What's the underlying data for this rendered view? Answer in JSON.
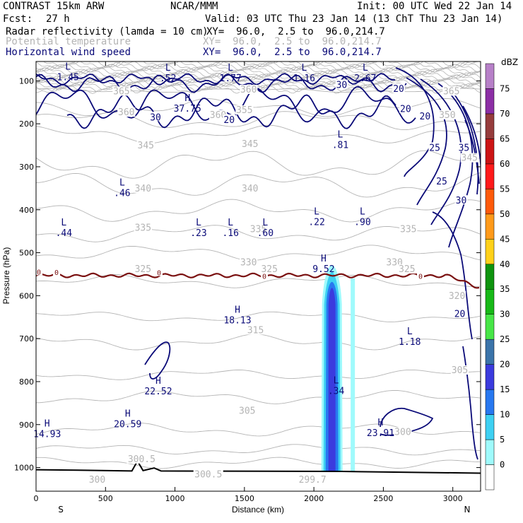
{
  "header": {
    "model": "CONTRAST 15km ARW",
    "org": "NCAR/MMM",
    "init": "Init: 00 UTC Wed 22 Jan 14",
    "fcst_label": "Fcst:",
    "fcst_value": "27 h",
    "valid": "Valid: 03 UTC Thu 23 Jan 14 (13 ChT Thu 23 Jan 14)",
    "field1_label": "Radar reflectivity (lamda = 10 cm)",
    "field1_xy": "XY=  96.0,  2.5 to  96.0,214.7",
    "field2_label": "Potential temperature",
    "field2_xy": "XY=  96.0,  2.5 to  96.0,214.7",
    "field3_label": "Horizontal wind speed",
    "field3_xy": "XY=  96.0,  2.5 to  96.0,214.7"
  },
  "colors": {
    "wind": "#0a0a78",
    "theta": "#b4b4b4",
    "freezing": "#7a1010",
    "terrain": "#000000",
    "text": "#000000"
  },
  "chart_data": {
    "type": "cross-section",
    "xlabel": "Distance (km)",
    "ylabel": "Pressure (hPa)",
    "xlim": [
      0,
      3200
    ],
    "ylim": [
      1055,
      55
    ],
    "x_ticks": [
      0,
      500,
      1000,
      1500,
      2000,
      2500,
      3000
    ],
    "y_ticks": [
      100,
      200,
      300,
      400,
      500,
      600,
      700,
      800,
      900,
      1000
    ],
    "x_end_labels": {
      "left": "S",
      "right": "N"
    },
    "colorbar": {
      "unit": "dBZ",
      "levels": [
        "0",
        "5",
        "10",
        "15",
        "20",
        "25",
        "30",
        "35",
        "40",
        "45",
        "50",
        "55",
        "60",
        "65",
        "70",
        "75"
      ],
      "colors": [
        "#ffffff",
        "#9ffafc",
        "#3ed0f2",
        "#2878f0",
        "#3b3bde",
        "#3b74aa",
        "#47e647",
        "#17b917",
        "#0e940e",
        "#ffd11a",
        "#ff9a1a",
        "#ff5a0a",
        "#ff1a1a",
        "#cc1414",
        "#963c3c",
        "#8c2ea5",
        "#b780c8"
      ]
    },
    "reflectivity_column": {
      "x_center_km": 2130,
      "top_hPa": 530,
      "bottom_hPa": 1010,
      "max_dbz": 20
    },
    "freezing_level": {
      "label": "0",
      "mean_hPa": 553
    },
    "theta_labels": [
      {
        "t": "365",
        "x": 615,
        "p": 128
      },
      {
        "t": "360",
        "x": 1530,
        "p": 124
      },
      {
        "t": "365",
        "x": 2990,
        "p": 128
      },
      {
        "t": "360",
        "x": 650,
        "p": 177
      },
      {
        "t": "360",
        "x": 1310,
        "p": 183
      },
      {
        "t": "355",
        "x": 1500,
        "p": 172
      },
      {
        "t": "350",
        "x": 2960,
        "p": 183
      },
      {
        "t": "345",
        "x": 790,
        "p": 254
      },
      {
        "t": "345",
        "x": 1540,
        "p": 251
      },
      {
        "t": "345",
        "x": 3120,
        "p": 283
      },
      {
        "t": "340",
        "x": 770,
        "p": 354
      },
      {
        "t": "340",
        "x": 1540,
        "p": 354
      },
      {
        "t": "335",
        "x": 770,
        "p": 446
      },
      {
        "t": "335",
        "x": 1600,
        "p": 449
      },
      {
        "t": "335",
        "x": 2680,
        "p": 449
      },
      {
        "t": "330",
        "x": 1530,
        "p": 526
      },
      {
        "t": "330",
        "x": 2580,
        "p": 526
      },
      {
        "t": "325",
        "x": 770,
        "p": 542
      },
      {
        "t": "325",
        "x": 1680,
        "p": 542
      },
      {
        "t": "325",
        "x": 2670,
        "p": 542
      },
      {
        "t": "320",
        "x": 3030,
        "p": 604
      },
      {
        "t": "315",
        "x": 1580,
        "p": 684
      },
      {
        "t": "305",
        "x": 3050,
        "p": 777
      },
      {
        "t": "305",
        "x": 1520,
        "p": 872
      },
      {
        "t": "300",
        "x": 2640,
        "p": 921
      },
      {
        "t": "300.5",
        "x": 760,
        "p": 984
      },
      {
        "t": "300.5",
        "x": 1240,
        "p": 1020
      },
      {
        "t": "299.7",
        "x": 1990,
        "p": 1032
      },
      {
        "t": "300",
        "x": 440,
        "p": 1032
      }
    ],
    "wind_labels": [
      {
        "t": "30",
        "x": 2200,
        "p": 112
      },
      {
        "t": "20",
        "x": 2610,
        "p": 121
      },
      {
        "t": "20",
        "x": 2660,
        "p": 168
      },
      {
        "t": "20",
        "x": 2800,
        "p": 185
      },
      {
        "t": "30",
        "x": 860,
        "p": 187
      },
      {
        "t": "20",
        "x": 1390,
        "p": 193
      },
      {
        "t": "25",
        "x": 2870,
        "p": 258
      },
      {
        "t": "35",
        "x": 3080,
        "p": 258
      },
      {
        "t": "25",
        "x": 2920,
        "p": 336
      },
      {
        "t": "30",
        "x": 3060,
        "p": 381
      },
      {
        "t": "20",
        "x": 3050,
        "p": 645
      }
    ],
    "extrema": [
      {
        "k": "L",
        "v": "1.45",
        "x": 230,
        "p": 82
      },
      {
        "k": "L",
        "v": ".52",
        "x": 950,
        "p": 85
      },
      {
        "k": "L",
        "v": "1.77",
        "x": 1400,
        "p": 85
      },
      {
        "k": "L",
        "v": "1.16",
        "x": 1930,
        "p": 85
      },
      {
        "k": "L",
        "v": "2.67",
        "x": 2370,
        "p": 85
      },
      {
        "k": "H",
        "v": "37.75",
        "x": 1090,
        "p": 155
      },
      {
        "k": "L",
        "v": ".81",
        "x": 2190,
        "p": 240
      },
      {
        "k": "L",
        "v": ".46",
        "x": 620,
        "p": 352
      },
      {
        "k": "L",
        "v": ".44",
        "x": 200,
        "p": 445
      },
      {
        "k": "L",
        "v": ".23",
        "x": 1170,
        "p": 445
      },
      {
        "k": "L",
        "v": ".16",
        "x": 1400,
        "p": 445
      },
      {
        "k": "L",
        "v": ".60",
        "x": 1650,
        "p": 445
      },
      {
        "k": "L",
        "v": ".22",
        "x": 2020,
        "p": 419
      },
      {
        "k": "L",
        "v": ".90",
        "x": 2350,
        "p": 419
      },
      {
        "k": "H",
        "v": "9.52",
        "x": 2070,
        "p": 529
      },
      {
        "k": "H",
        "v": "18.13",
        "x": 1450,
        "p": 648
      },
      {
        "k": "L",
        "v": "1.18",
        "x": 2690,
        "p": 698
      },
      {
        "k": "L",
        "v": ".34",
        "x": 2160,
        "p": 812
      },
      {
        "k": "H",
        "v": "22.52",
        "x": 880,
        "p": 813
      },
      {
        "k": "H",
        "v": "20.59",
        "x": 660,
        "p": 890
      },
      {
        "k": "H",
        "v": "14.93",
        "x": 80,
        "p": 913
      },
      {
        "k": "H",
        "v": "23.91",
        "x": 2480,
        "p": 910
      }
    ],
    "terrain_hPa": [
      [
        0,
        1005
      ],
      [
        300,
        1006
      ],
      [
        690,
        1008
      ],
      [
        730,
        985
      ],
      [
        770,
        1007
      ],
      [
        850,
        1001
      ],
      [
        900,
        1008
      ],
      [
        2200,
        1009
      ],
      [
        3200,
        1013
      ]
    ]
  }
}
